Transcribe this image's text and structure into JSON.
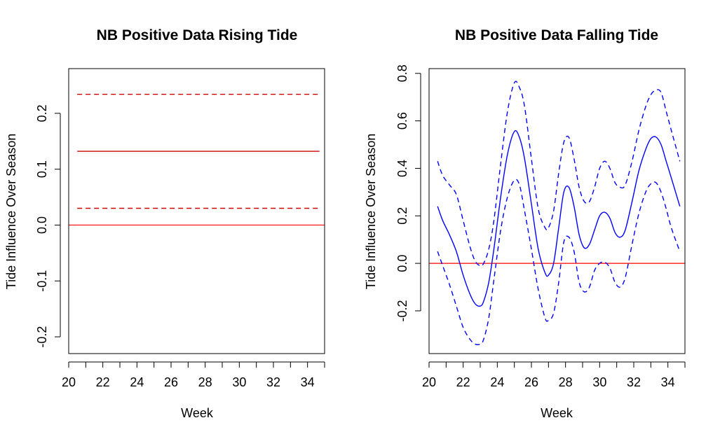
{
  "chart_data": [
    {
      "type": "line",
      "title": "NB Positive Data Rising Tide",
      "xlabel": "Week",
      "ylabel": "Tide Influence Over Season",
      "xlim": [
        20,
        35
      ],
      "ylim": [
        -0.23,
        0.28
      ],
      "xticks": [
        20,
        22,
        24,
        26,
        28,
        30,
        32,
        34
      ],
      "xtick_labels": [
        "20",
        "22",
        "24",
        "26",
        "28",
        "30",
        "32",
        "34"
      ],
      "minor_xticks": [
        21,
        23,
        25,
        27,
        29,
        31,
        33,
        35
      ],
      "yticks": [
        -0.2,
        -0.1,
        0.0,
        0.1,
        0.2
      ],
      "ytick_labels": [
        "-0.2",
        "-0.1",
        "0.0",
        "0.1",
        "0.2"
      ],
      "reference_line": {
        "y": 0.0,
        "color": "#ff0000"
      },
      "colors": {
        "estimate": "#cc0000",
        "reference": "#ff0000"
      },
      "series": [
        {
          "style": "solid",
          "x": [
            20.5,
            34.7
          ],
          "y": [
            0.132,
            0.132
          ]
        },
        {
          "style": "dashed",
          "x": [
            20.5,
            34.7
          ],
          "y": [
            0.234,
            0.234
          ]
        },
        {
          "style": "dashed",
          "x": [
            20.5,
            34.7
          ],
          "y": [
            0.03,
            0.03
          ]
        }
      ]
    },
    {
      "type": "line",
      "title": "NB Positive Data Falling Tide",
      "xlabel": "Week",
      "ylabel": "Tide Influence Over Season",
      "xlim": [
        20,
        35
      ],
      "ylim": [
        -0.38,
        0.82
      ],
      "xticks": [
        20,
        22,
        24,
        26,
        28,
        30,
        32,
        34
      ],
      "xtick_labels": [
        "20",
        "22",
        "24",
        "26",
        "28",
        "30",
        "32",
        "34"
      ],
      "minor_xticks": [
        21,
        23,
        25,
        27,
        29,
        31,
        33,
        35
      ],
      "yticks": [
        -0.2,
        0.0,
        0.2,
        0.4,
        0.6,
        0.8
      ],
      "ytick_labels": [
        "-0.2",
        "0.0",
        "0.2",
        "0.4",
        "0.6",
        "0.8"
      ],
      "reference_line": {
        "y": 0.0,
        "color": "#ff0000"
      },
      "colors": {
        "estimate": "#0000ff",
        "reference": "#ff0000"
      },
      "series": [
        {
          "style": "solid",
          "x": [
            20.5,
            20.8,
            21.2,
            21.6,
            22.0,
            22.4,
            22.7,
            23.0,
            23.2,
            23.5,
            23.8,
            24.2,
            24.6,
            25.0,
            25.3,
            25.6,
            26.0,
            26.4,
            26.8,
            27.0,
            27.3,
            27.6,
            27.9,
            28.2,
            28.5,
            28.8,
            29.1,
            29.4,
            29.7,
            30.0,
            30.3,
            30.6,
            30.9,
            31.2,
            31.5,
            31.9,
            32.3,
            32.7,
            33.0,
            33.3,
            33.6,
            33.9,
            34.2,
            34.7
          ],
          "y": [
            0.24,
            0.18,
            0.12,
            0.05,
            -0.05,
            -0.13,
            -0.17,
            -0.18,
            -0.16,
            -0.08,
            0.06,
            0.28,
            0.46,
            0.555,
            0.53,
            0.44,
            0.25,
            0.06,
            -0.04,
            -0.05,
            0.0,
            0.15,
            0.3,
            0.32,
            0.24,
            0.12,
            0.065,
            0.08,
            0.14,
            0.2,
            0.215,
            0.19,
            0.13,
            0.11,
            0.14,
            0.26,
            0.39,
            0.48,
            0.525,
            0.532,
            0.5,
            0.43,
            0.36,
            0.24
          ]
        },
        {
          "style": "dashed",
          "x": [
            20.5,
            20.8,
            21.2,
            21.6,
            22.0,
            22.4,
            22.7,
            23.0,
            23.2,
            23.5,
            23.8,
            24.2,
            24.6,
            25.0,
            25.3,
            25.6,
            26.0,
            26.4,
            26.8,
            27.0,
            27.3,
            27.6,
            27.9,
            28.2,
            28.5,
            28.8,
            29.1,
            29.4,
            29.7,
            30.0,
            30.3,
            30.6,
            30.9,
            31.2,
            31.5,
            31.9,
            32.3,
            32.7,
            33.0,
            33.3,
            33.6,
            33.9,
            34.2,
            34.7
          ],
          "y": [
            0.43,
            0.37,
            0.33,
            0.29,
            0.18,
            0.07,
            0.01,
            -0.01,
            0.0,
            0.06,
            0.18,
            0.42,
            0.64,
            0.76,
            0.74,
            0.66,
            0.44,
            0.23,
            0.15,
            0.15,
            0.22,
            0.38,
            0.51,
            0.53,
            0.44,
            0.32,
            0.26,
            0.26,
            0.32,
            0.4,
            0.43,
            0.4,
            0.34,
            0.32,
            0.33,
            0.43,
            0.56,
            0.66,
            0.71,
            0.73,
            0.72,
            0.64,
            0.56,
            0.43
          ]
        },
        {
          "style": "dashed",
          "x": [
            20.5,
            20.8,
            21.2,
            21.6,
            22.0,
            22.4,
            22.7,
            23.0,
            23.2,
            23.5,
            23.8,
            24.2,
            24.6,
            25.0,
            25.3,
            25.6,
            26.0,
            26.4,
            26.8,
            27.0,
            27.3,
            27.6,
            27.9,
            28.2,
            28.5,
            28.8,
            29.1,
            29.4,
            29.7,
            30.0,
            30.3,
            30.6,
            30.9,
            31.2,
            31.5,
            31.9,
            32.3,
            32.7,
            33.0,
            33.3,
            33.6,
            33.9,
            34.2,
            34.7
          ],
          "y": [
            0.05,
            -0.01,
            -0.09,
            -0.18,
            -0.27,
            -0.32,
            -0.34,
            -0.34,
            -0.32,
            -0.23,
            -0.07,
            0.14,
            0.28,
            0.35,
            0.33,
            0.22,
            0.06,
            -0.11,
            -0.23,
            -0.24,
            -0.21,
            -0.08,
            0.09,
            0.11,
            0.05,
            -0.08,
            -0.12,
            -0.1,
            -0.03,
            0.0,
            0.005,
            -0.02,
            -0.08,
            -0.1,
            -0.06,
            0.08,
            0.21,
            0.3,
            0.335,
            0.34,
            0.3,
            0.23,
            0.15,
            0.05
          ]
        }
      ]
    }
  ]
}
